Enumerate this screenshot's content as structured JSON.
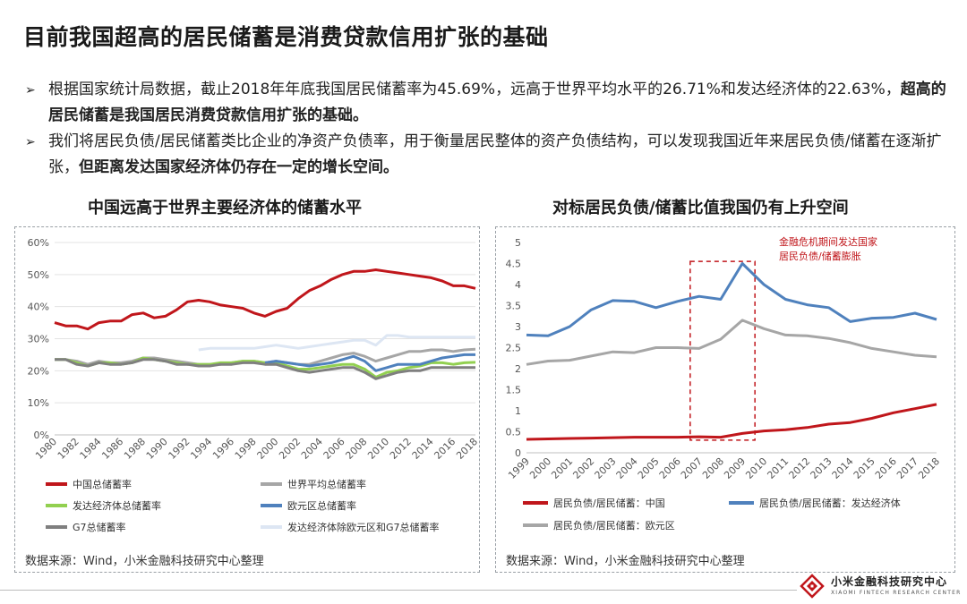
{
  "title": "目前我国超高的居民储蓄是消费贷款信用扩张的基础",
  "bullets": [
    {
      "normal": "根据国家统计局数据，截止2018年年底我国居民储蓄率为45.69%，远高于世界平均水平的26.71%和发达经济体的22.63%，",
      "bold": "超高的居民储蓄是我国居民消费贷款信用扩张的基础。"
    },
    {
      "normal": "我们将居民负债/居民储蓄类比企业的净资产负债率，用于衡量居民整体的资产负债结构，可以发现我国近年来居民负债/储蓄在逐渐扩张，",
      "bold": "但距离发达国家经济体仍存在一定的增长空间。"
    }
  ],
  "left_panel": {
    "title": "中国远高于世界主要经济体的储蓄水平",
    "source": "数据来源：Wind，小米金融科技研究中心整理"
  },
  "right_panel": {
    "title": "对标居民负债/储蓄比值我国仍有上升空间",
    "source": "数据来源：Wind，小米金融科技研究中心整理"
  },
  "logo": {
    "name": "小米金融科技研究中心",
    "sub": "XIAOMI FINTECH RESEARCH CENTER"
  },
  "chart_data": [
    {
      "type": "line",
      "title": "中国远高于世界主要经济体的储蓄水平",
      "x": [
        1980,
        1981,
        1982,
        1983,
        1984,
        1985,
        1986,
        1987,
        1988,
        1989,
        1990,
        1991,
        1992,
        1993,
        1994,
        1995,
        1996,
        1997,
        1998,
        1999,
        2000,
        2001,
        2002,
        2003,
        2004,
        2005,
        2006,
        2007,
        2008,
        2009,
        2010,
        2011,
        2012,
        2013,
        2014,
        2015,
        2016,
        2017,
        2018
      ],
      "x_tick_labels": [
        "1980",
        "1982",
        "1984",
        "1986",
        "1988",
        "1990",
        "1992",
        "1994",
        "1996",
        "1998",
        "2000",
        "2002",
        "2004",
        "2006",
        "2008",
        "2010",
        "2012",
        "2014",
        "2016",
        "2018"
      ],
      "ylim": [
        0,
        60
      ],
      "y_tick_labels": [
        "0%",
        "10%",
        "20%",
        "30%",
        "40%",
        "50%",
        "60%"
      ],
      "series": [
        {
          "name": "中国总储蓄率",
          "color": "#c0161b",
          "values": [
            35,
            34,
            34,
            33,
            35,
            35.5,
            35.5,
            37.5,
            38,
            36.5,
            37,
            39,
            41.5,
            42,
            41.5,
            40.5,
            40,
            39.5,
            38,
            37,
            38.5,
            39.5,
            42.5,
            45,
            46.5,
            48.5,
            50,
            51,
            51,
            51.5,
            51,
            50.5,
            50,
            49.5,
            49,
            48,
            46.5,
            46.5,
            45.69
          ]
        },
        {
          "name": "世界平均总储蓄率",
          "color": "#a6a6a6",
          "values": [
            23.5,
            23.5,
            23,
            22,
            23,
            22.5,
            22.5,
            23,
            24,
            24,
            23.5,
            23,
            22.5,
            22,
            22,
            22,
            22.5,
            23,
            23,
            22.5,
            23,
            22.5,
            22,
            22,
            23,
            24,
            25,
            25.5,
            24.5,
            23,
            24,
            25,
            26,
            26,
            26.5,
            26.5,
            26,
            26.5,
            26.71
          ]
        },
        {
          "name": "发达经济体总储蓄率",
          "color": "#92d050",
          "values": [
            23.5,
            23.5,
            22.5,
            21.5,
            22.5,
            22.5,
            22,
            22.5,
            24,
            23.5,
            23,
            22.5,
            22,
            22,
            22,
            22.5,
            22.5,
            23,
            23,
            22.5,
            22.5,
            21.5,
            20.5,
            20.5,
            21,
            21.5,
            22,
            22,
            20.5,
            18,
            19.5,
            20,
            21,
            21.5,
            22.5,
            22.5,
            22,
            22.5,
            22.63
          ]
        },
        {
          "name": "欧元区总储蓄率",
          "color": "#4f81bd",
          "values": [
            null,
            null,
            null,
            null,
            null,
            null,
            null,
            null,
            null,
            null,
            null,
            null,
            null,
            null,
            null,
            null,
            null,
            null,
            null,
            22.5,
            23,
            22.5,
            22,
            21.5,
            22,
            22.5,
            23.5,
            24.5,
            23,
            20,
            21,
            22,
            22,
            22,
            23,
            24,
            24.5,
            25,
            25
          ]
        },
        {
          "name": "G7总储蓄率",
          "color": "#7f7f7f",
          "values": [
            23.5,
            23.5,
            22,
            21.5,
            22.5,
            22,
            22,
            22.5,
            23.5,
            23.5,
            23,
            22,
            22,
            21.5,
            21.5,
            22,
            22,
            22.5,
            22.5,
            22,
            22,
            21,
            20,
            19.5,
            20,
            20.5,
            21,
            21,
            19.5,
            17.5,
            18.5,
            19.5,
            20,
            20,
            21,
            21,
            21,
            21,
            21
          ]
        },
        {
          "name": "发达经济体除欧元区和G7总储蓄率",
          "color": "#dde6f3",
          "values": [
            null,
            null,
            null,
            null,
            null,
            null,
            null,
            null,
            null,
            null,
            null,
            null,
            null,
            26.5,
            27,
            27,
            27,
            27,
            27,
            27.5,
            28,
            27.5,
            27,
            27.5,
            28,
            28.5,
            29,
            29.5,
            29.5,
            28,
            31,
            31,
            30.5,
            30.5,
            30.5,
            30.5,
            30.5,
            30.5,
            30.5
          ]
        }
      ]
    },
    {
      "type": "line",
      "title": "对标居民负债/储蓄比值我国仍有上升空间",
      "x": [
        1999,
        2000,
        2001,
        2002,
        2003,
        2004,
        2005,
        2006,
        2007,
        2008,
        2009,
        2010,
        2011,
        2012,
        2013,
        2014,
        2015,
        2016,
        2017,
        2018
      ],
      "ylim": [
        0,
        5
      ],
      "y_tick_labels": [
        "0",
        "0.5",
        "1",
        "1.5",
        "2",
        "2.5",
        "3",
        "3.5",
        "4",
        "4.5",
        "5"
      ],
      "annotation": "金融危机期间发达国家居民负债/储蓄膨胀",
      "highlight_x_range": [
        2007,
        2010
      ],
      "series": [
        {
          "name": "居民负债/居民储蓄：中国",
          "color": "#c0161b",
          "values": [
            0.32,
            0.33,
            0.34,
            0.35,
            0.36,
            0.37,
            0.37,
            0.37,
            0.38,
            0.37,
            0.46,
            0.52,
            0.55,
            0.6,
            0.68,
            0.72,
            0.82,
            0.95,
            1.05,
            1.15
          ]
        },
        {
          "name": "居民负债/居民储蓄：发达经济体",
          "color": "#4f81bd",
          "values": [
            2.8,
            2.78,
            3.0,
            3.4,
            3.62,
            3.6,
            3.45,
            3.6,
            3.72,
            3.65,
            4.5,
            4.0,
            3.65,
            3.52,
            3.45,
            3.12,
            3.2,
            3.22,
            3.32,
            3.17
          ]
        },
        {
          "name": "居民负债/居民储蓄：欧元区",
          "color": "#a6a6a6",
          "values": [
            2.1,
            2.18,
            2.2,
            2.3,
            2.4,
            2.38,
            2.5,
            2.5,
            2.48,
            2.7,
            3.15,
            2.95,
            2.8,
            2.78,
            2.72,
            2.62,
            2.48,
            2.4,
            2.32,
            2.28
          ]
        }
      ]
    }
  ]
}
